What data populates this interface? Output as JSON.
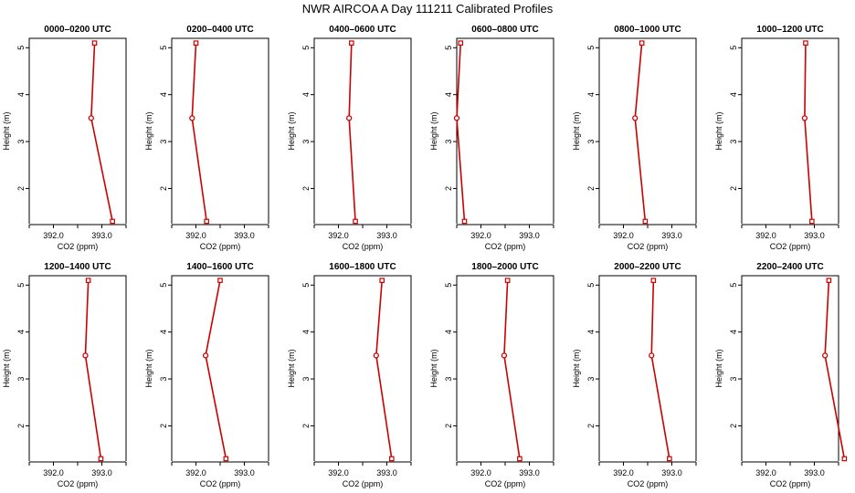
{
  "title": "NWR AIRCOA A  Day 111211  Calibrated Profiles",
  "chart_data": [
    {
      "type": "line",
      "title": "0000–0200 UTC",
      "xlabel": "CO2 (ppm)",
      "ylabel": "Height (m)",
      "xticks": [
        "392.0",
        "393.0"
      ],
      "yticks": [
        "2",
        "3",
        "4",
        "5"
      ],
      "xlim": [
        391.5,
        393.5
      ],
      "ylim": [
        1.25,
        5.2
      ],
      "series": [
        {
          "x": [
            392.85,
            392.78,
            393.22
          ],
          "y": [
            5.1,
            3.5,
            1.3
          ]
        }
      ],
      "grid": false,
      "color": "#cc0000"
    },
    {
      "type": "line",
      "title": "0200–0400 UTC",
      "xlabel": "CO2 (ppm)",
      "ylabel": "Height (m)",
      "xticks": [
        "392.0",
        "393.0"
      ],
      "yticks": [
        "2",
        "3",
        "4",
        "5"
      ],
      "xlim": [
        391.5,
        393.5
      ],
      "ylim": [
        1.25,
        5.2
      ],
      "series": [
        {
          "x": [
            392.0,
            391.92,
            392.22
          ],
          "y": [
            5.1,
            3.5,
            1.3
          ]
        }
      ],
      "grid": false,
      "color": "#cc0000"
    },
    {
      "type": "line",
      "title": "0400–0600 UTC",
      "xlabel": "CO2 (ppm)",
      "ylabel": "Height (m)",
      "xticks": [
        "392.0",
        "393.0"
      ],
      "yticks": [
        "2",
        "3",
        "4",
        "5"
      ],
      "xlim": [
        391.5,
        393.5
      ],
      "ylim": [
        1.25,
        5.2
      ],
      "series": [
        {
          "x": [
            392.27,
            392.22,
            392.35
          ],
          "y": [
            5.1,
            3.5,
            1.3
          ]
        }
      ],
      "grid": false,
      "color": "#cc0000"
    },
    {
      "type": "line",
      "title": "0600–0800 UTC",
      "xlabel": "CO2 (ppm)",
      "ylabel": "Height (m)",
      "xticks": [
        "392.0",
        "393.0"
      ],
      "yticks": [
        "2",
        "3",
        "4",
        "5"
      ],
      "xlim": [
        391.5,
        393.5
      ],
      "ylim": [
        1.25,
        5.2
      ],
      "series": [
        {
          "x": [
            391.58,
            391.5,
            391.66
          ],
          "y": [
            5.1,
            3.5,
            1.3
          ]
        }
      ],
      "grid": false,
      "color": "#cc0000"
    },
    {
      "type": "line",
      "title": "0800–1000 UTC",
      "xlabel": "CO2 (ppm)",
      "ylabel": "Height (m)",
      "xticks": [
        "392.0",
        "393.0"
      ],
      "yticks": [
        "2",
        "3",
        "4",
        "5"
      ],
      "xlim": [
        391.5,
        393.5
      ],
      "ylim": [
        1.25,
        5.2
      ],
      "series": [
        {
          "x": [
            392.38,
            392.24,
            392.45
          ],
          "y": [
            5.1,
            3.5,
            1.3
          ]
        }
      ],
      "grid": false,
      "color": "#cc0000"
    },
    {
      "type": "line",
      "title": "1000–1200 UTC",
      "xlabel": "CO2 (ppm)",
      "ylabel": "Height (m)",
      "xticks": [
        "392.0",
        "393.0"
      ],
      "yticks": [
        "2",
        "3",
        "4",
        "5"
      ],
      "xlim": [
        391.5,
        393.5
      ],
      "ylim": [
        1.25,
        5.2
      ],
      "series": [
        {
          "x": [
            392.82,
            392.8,
            392.95
          ],
          "y": [
            5.1,
            3.5,
            1.3
          ]
        }
      ],
      "grid": false,
      "color": "#cc0000"
    },
    {
      "type": "line",
      "title": "1200–1400 UTC",
      "xlabel": "CO2 (ppm)",
      "ylabel": "Height (m)",
      "xticks": [
        "392.0",
        "393.0"
      ],
      "yticks": [
        "2",
        "3",
        "4",
        "5"
      ],
      "xlim": [
        391.5,
        393.5
      ],
      "ylim": [
        1.25,
        5.2
      ],
      "series": [
        {
          "x": [
            392.72,
            392.66,
            392.98
          ],
          "y": [
            5.1,
            3.5,
            1.3
          ]
        }
      ],
      "grid": false,
      "color": "#cc0000"
    },
    {
      "type": "line",
      "title": "1400–1600 UTC",
      "xlabel": "CO2 (ppm)",
      "ylabel": "Height (m)",
      "xticks": [
        "392.0",
        "393.0"
      ],
      "yticks": [
        "2",
        "3",
        "4",
        "5"
      ],
      "xlim": [
        391.5,
        393.5
      ],
      "ylim": [
        1.25,
        5.2
      ],
      "series": [
        {
          "x": [
            392.5,
            392.2,
            392.62
          ],
          "y": [
            5.1,
            3.5,
            1.3
          ]
        }
      ],
      "grid": false,
      "color": "#cc0000"
    },
    {
      "type": "line",
      "title": "1600–1800 UTC",
      "xlabel": "CO2 (ppm)",
      "ylabel": "Height (m)",
      "xticks": [
        "392.0",
        "393.0"
      ],
      "yticks": [
        "2",
        "3",
        "4",
        "5"
      ],
      "xlim": [
        391.5,
        393.5
      ],
      "ylim": [
        1.25,
        5.2
      ],
      "series": [
        {
          "x": [
            392.9,
            392.78,
            393.1
          ],
          "y": [
            5.1,
            3.5,
            1.3
          ]
        }
      ],
      "grid": false,
      "color": "#cc0000"
    },
    {
      "type": "line",
      "title": "1800–2000 UTC",
      "xlabel": "CO2 (ppm)",
      "ylabel": "Height (m)",
      "xticks": [
        "392.0",
        "393.0"
      ],
      "yticks": [
        "2",
        "3",
        "4",
        "5"
      ],
      "xlim": [
        391.5,
        393.5
      ],
      "ylim": [
        1.25,
        5.2
      ],
      "series": [
        {
          "x": [
            392.55,
            392.48,
            392.8
          ],
          "y": [
            5.1,
            3.5,
            1.3
          ]
        }
      ],
      "grid": false,
      "color": "#cc0000"
    },
    {
      "type": "line",
      "title": "2000–2200 UTC",
      "xlabel": "CO2 (ppm)",
      "ylabel": "Height (m)",
      "xticks": [
        "392.0",
        "393.0"
      ],
      "yticks": [
        "2",
        "3",
        "4",
        "5"
      ],
      "xlim": [
        391.5,
        393.5
      ],
      "ylim": [
        1.25,
        5.2
      ],
      "series": [
        {
          "x": [
            392.62,
            392.58,
            392.95
          ],
          "y": [
            5.1,
            3.5,
            1.3
          ]
        }
      ],
      "grid": false,
      "color": "#cc0000"
    },
    {
      "type": "line",
      "title": "2200–2400 UTC",
      "xlabel": "CO2 (ppm)",
      "ylabel": "Height (m)",
      "xticks": [
        "392.0",
        "393.0"
      ],
      "yticks": [
        "2",
        "3",
        "4",
        "5"
      ],
      "xlim": [
        391.5,
        393.5
      ],
      "ylim": [
        1.25,
        5.2
      ],
      "series": [
        {
          "x": [
            393.3,
            393.22,
            393.62
          ],
          "y": [
            5.1,
            3.5,
            1.3
          ]
        }
      ],
      "grid": false,
      "color": "#cc0000"
    }
  ]
}
